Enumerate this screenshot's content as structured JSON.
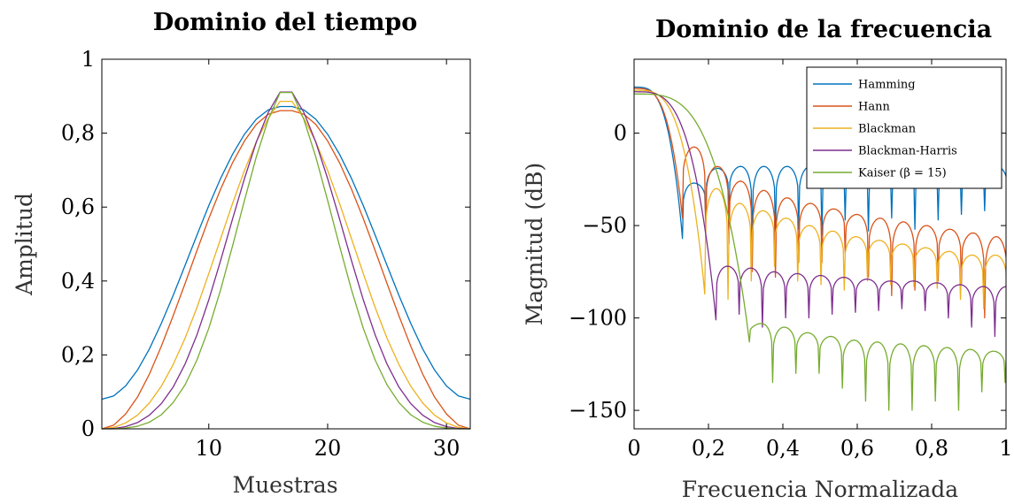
{
  "chart_data": [
    {
      "type": "line",
      "title": "Dominio del tiempo",
      "xlabel": "Muestras",
      "ylabel": "Amplitud",
      "xlim": [
        1,
        32
      ],
      "ylim": [
        0,
        1
      ],
      "xticks": [
        10,
        20,
        30
      ],
      "xtick_labels": [
        "10",
        "20",
        "30"
      ],
      "yticks": [
        0,
        0.2,
        0.4,
        0.6,
        0.8,
        1
      ],
      "ytick_labels": [
        "0",
        "0,2",
        "0,4",
        "0,6",
        "0,8",
        "1"
      ],
      "grid": false,
      "x": [
        1,
        2,
        3,
        4,
        5,
        6,
        7,
        8,
        9,
        10,
        11,
        12,
        13,
        14,
        15,
        16,
        17,
        18,
        19,
        20,
        21,
        22,
        23,
        24,
        25,
        26,
        27,
        28,
        29,
        30,
        31,
        32
      ],
      "series": [
        {
          "name": "Hamming",
          "color": "#0072BD",
          "values": [
            0.08,
            0.089,
            0.116,
            0.159,
            0.216,
            0.285,
            0.361,
            0.442,
            0.524,
            0.604,
            0.678,
            0.743,
            0.797,
            0.838,
            0.863,
            0.872,
            0.872,
            0.863,
            0.838,
            0.797,
            0.743,
            0.678,
            0.604,
            0.524,
            0.442,
            0.361,
            0.285,
            0.216,
            0.159,
            0.116,
            0.089,
            0.08
          ]
        },
        {
          "name": "Hann",
          "color": "#D95319",
          "values": [
            0,
            0.01,
            0.04,
            0.086,
            0.148,
            0.223,
            0.306,
            0.393,
            0.482,
            0.569,
            0.649,
            0.72,
            0.779,
            0.824,
            0.851,
            0.861,
            0.861,
            0.851,
            0.824,
            0.779,
            0.72,
            0.649,
            0.569,
            0.482,
            0.393,
            0.306,
            0.223,
            0.148,
            0.086,
            0.04,
            0.01,
            0
          ]
        },
        {
          "name": "Blackman",
          "color": "#EDB120",
          "values": [
            0,
            0.004,
            0.016,
            0.037,
            0.07,
            0.115,
            0.174,
            0.245,
            0.328,
            0.42,
            0.515,
            0.61,
            0.699,
            0.777,
            0.84,
            0.886,
            0.886,
            0.84,
            0.777,
            0.699,
            0.61,
            0.515,
            0.42,
            0.328,
            0.245,
            0.174,
            0.115,
            0.07,
            0.037,
            0.016,
            0.004,
            0
          ]
        },
        {
          "name": "Blackman-Harris",
          "color": "#7E2F8E",
          "values": [
            0,
            0.001,
            0.006,
            0.017,
            0.037,
            0.068,
            0.113,
            0.175,
            0.254,
            0.349,
            0.456,
            0.568,
            0.677,
            0.776,
            0.856,
            0.911,
            0.911,
            0.856,
            0.776,
            0.677,
            0.568,
            0.456,
            0.349,
            0.254,
            0.175,
            0.113,
            0.068,
            0.037,
            0.017,
            0.006,
            0.001,
            0
          ]
        },
        {
          "name": "Kaiser (β = 15)",
          "color": "#77AC30",
          "values": [
            0,
            0,
            0.002,
            0.007,
            0.018,
            0.038,
            0.071,
            0.119,
            0.186,
            0.272,
            0.377,
            0.495,
            0.618,
            0.736,
            0.837,
            0.91,
            0.91,
            0.837,
            0.736,
            0.618,
            0.495,
            0.377,
            0.272,
            0.186,
            0.119,
            0.071,
            0.038,
            0.018,
            0.007,
            0.002,
            0,
            0
          ]
        }
      ]
    },
    {
      "type": "line",
      "title": "Dominio de la frecuencia",
      "xlabel": "Frecuencia Normalizada",
      "ylabel": "Magnitud (dB)",
      "xlim": [
        0,
        1
      ],
      "ylim": [
        -160,
        40
      ],
      "xticks": [
        0,
        0.2,
        0.4,
        0.6,
        0.8,
        1
      ],
      "xtick_labels": [
        "0",
        "0,2",
        "0,4",
        "0,6",
        "0,8",
        "1"
      ],
      "yticks": [
        0,
        -50,
        -100,
        -150
      ],
      "ytick_labels": [
        "0",
        "−50",
        "−100",
        "−150"
      ],
      "grid": false,
      "legend": "top-right",
      "series": [
        {
          "name": "Hamming",
          "color": "#0072BD",
          "main_lobe_peak_db": 24.9,
          "main_lobe_null": 0.13,
          "sidelobe_spacing": 0.0625,
          "sidelobe_peak_db": [
            -27,
            -19,
            -18,
            -18,
            -18,
            -18,
            -18,
            -18,
            -18,
            -18,
            -18,
            -18,
            -18,
            -18
          ],
          "null_depth_db": [
            -57,
            -46,
            -45,
            -60,
            -55,
            -52,
            -55,
            -47,
            -53,
            -46,
            -52,
            -47,
            -44,
            -42
          ]
        },
        {
          "name": "Hann",
          "color": "#D95319",
          "main_lobe_peak_db": 24.2,
          "main_lobe_null": 0.13,
          "sidelobe_spacing": 0.0625,
          "sidelobe_peak_db": [
            -7.5,
            -18,
            -26,
            -31,
            -35,
            -38,
            -41,
            -44,
            -46,
            -48,
            -50,
            -52,
            -54,
            -56
          ],
          "null_depth_db": [
            -46,
            -55,
            -60,
            -75,
            -78,
            -70,
            -70,
            -65,
            -78,
            -88,
            -85,
            -80,
            -82,
            -100,
            -106
          ]
        },
        {
          "name": "Blackman",
          "color": "#EDB120",
          "main_lobe_peak_db": 23.2,
          "main_lobe_null": 0.19,
          "sidelobe_spacing": 0.0625,
          "sidelobe_peak_db": [
            -30,
            -38,
            -42,
            -46,
            -50,
            -53,
            -56,
            -58,
            -60,
            -62,
            -64,
            -66
          ],
          "null_depth_db": [
            -87,
            -90,
            -80,
            -72,
            -80,
            -82,
            -85,
            -80,
            -82,
            -83,
            -84,
            -90,
            -95
          ]
        },
        {
          "name": "Blackman-Harris",
          "color": "#7E2F8E",
          "main_lobe_peak_db": 22.4,
          "main_lobe_null": 0.22,
          "sidelobe_spacing": 0.0625,
          "sidelobe_peak_db": [
            -72,
            -73,
            -75,
            -76,
            -77,
            -78,
            -79,
            -80,
            -80,
            -81,
            -82,
            -83
          ],
          "null_depth_db": [
            -101,
            -98,
            -105,
            -100,
            -100,
            -98,
            -97,
            -96,
            -95,
            -96,
            -100,
            -105,
            -110
          ]
        },
        {
          "name": "Kaiser (β = 15)",
          "color": "#77AC30",
          "main_lobe_peak_db": 21.2,
          "main_lobe_null": 0.31,
          "sidelobe_spacing": 0.0625,
          "sidelobe_peak_db": [
            -103,
            -105,
            -108,
            -110,
            -112,
            -113,
            -114,
            -115,
            -116,
            -117,
            -118
          ],
          "null_depth_db": [
            -113,
            -135,
            -130,
            -130,
            -138,
            -145,
            -150,
            -150,
            -145,
            -150,
            -140,
            -135
          ]
        }
      ]
    }
  ]
}
